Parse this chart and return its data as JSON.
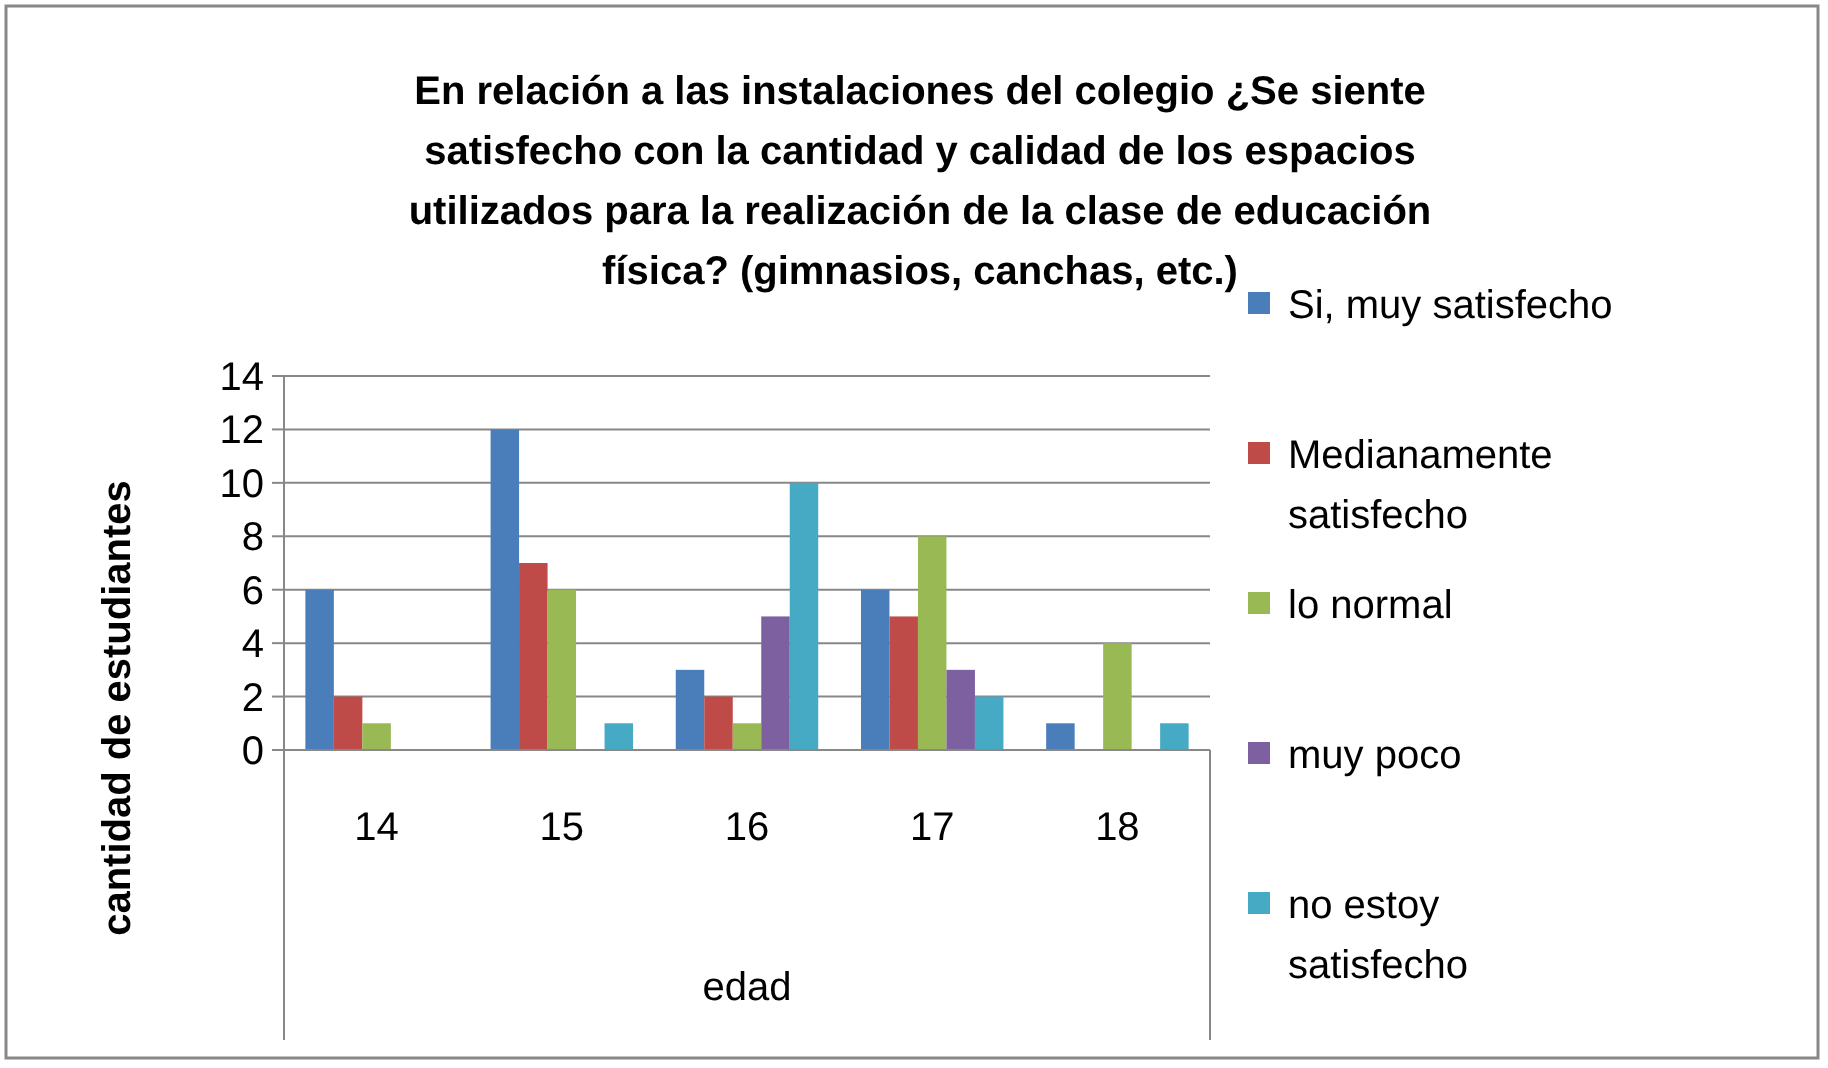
{
  "chart_data": {
    "type": "bar",
    "title": "En relación a las instalaciones del colegio ¿Se siente satisfecho con la cantidad y calidad  de los espacios utilizados para la realización de la clase de educación física? (gimnasios, canchas, etc.)",
    "xlabel": "edad",
    "ylabel": "cantidad de estudiantes",
    "categories": [
      "14",
      "15",
      "16",
      "17",
      "18"
    ],
    "series": [
      {
        "name": "Si, muy satisfecho",
        "color": "#4a7ebb",
        "values": [
          6,
          12,
          3,
          6,
          1
        ]
      },
      {
        "name": "Medianamente satisfecho",
        "color": "#be4b48",
        "values": [
          2,
          7,
          2,
          5,
          0
        ]
      },
      {
        "name": "lo normal",
        "color": "#98b954",
        "values": [
          1,
          6,
          1,
          8,
          4
        ]
      },
      {
        "name": "muy poco",
        "color": "#7d60a0",
        "values": [
          0,
          0,
          5,
          3,
          0
        ]
      },
      {
        "name": "no estoy satisfecho",
        "color": "#46aac5",
        "values": [
          0,
          1,
          10,
          2,
          1
        ]
      }
    ],
    "ylim": [
      0,
      14
    ],
    "yticks": [
      0,
      2,
      4,
      6,
      8,
      10,
      12,
      14
    ],
    "grid": "y",
    "legend": "right"
  }
}
